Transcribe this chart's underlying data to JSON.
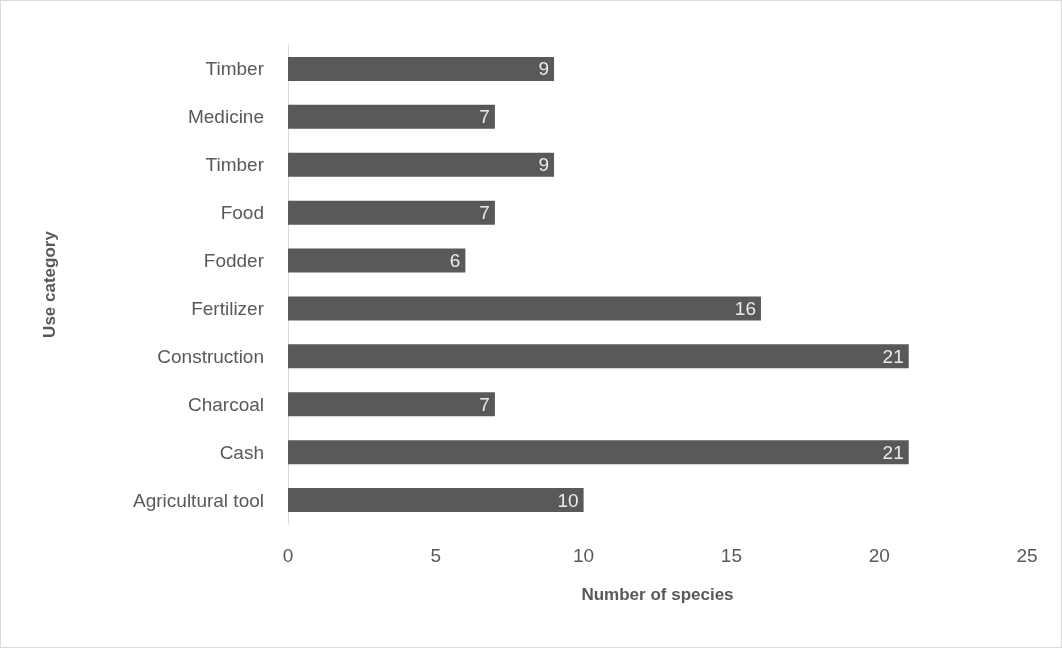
{
  "chart_data": {
    "type": "bar",
    "orientation": "horizontal",
    "xlabel": "Number of species",
    "ylabel": "Use category",
    "categories": [
      "Timber",
      "Medicine",
      "Timber",
      "Food",
      "Fodder",
      "Fertilizer",
      "Construction",
      "Charcoal",
      "Cash",
      "Agricultural tool"
    ],
    "values": [
      9,
      7,
      9,
      7,
      6,
      16,
      21,
      7,
      21,
      10
    ],
    "color": "#595959",
    "xlim": [
      0,
      25
    ],
    "xticks": [
      0,
      5,
      10,
      15,
      20,
      25
    ],
    "grid": false,
    "data_labels": true
  }
}
